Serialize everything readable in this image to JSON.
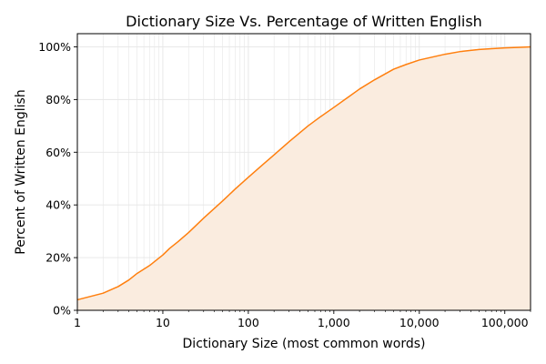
{
  "chart_data": {
    "type": "area",
    "title": "Dictionary Size Vs. Percentage of Written English",
    "xlabel": "Dictionary Size (most common words)",
    "ylabel": "Percent of Written English",
    "x_scale": "log",
    "xlim": [
      1,
      200000
    ],
    "ylim": [
      0,
      105
    ],
    "grid": true,
    "legend": "none",
    "x_ticks": [
      {
        "value": 1,
        "label": "1"
      },
      {
        "value": 10,
        "label": "10"
      },
      {
        "value": 100,
        "label": "100"
      },
      {
        "value": 1000,
        "label": "1,000"
      },
      {
        "value": 10000,
        "label": "10,000"
      },
      {
        "value": 100000,
        "label": "100,000"
      }
    ],
    "y_ticks": [
      {
        "value": 0,
        "label": "0%"
      },
      {
        "value": 20,
        "label": "20%"
      },
      {
        "value": 40,
        "label": "40%"
      },
      {
        "value": 60,
        "label": "60%"
      },
      {
        "value": 80,
        "label": "80%"
      },
      {
        "value": 100,
        "label": "100%"
      }
    ],
    "colors": {
      "line": "#ff7f0e",
      "fill": "#faecdf",
      "grid": "#e6e6e6",
      "axis": "#000000"
    },
    "series": [
      {
        "x": [
          1,
          2,
          3,
          4,
          5,
          7,
          8,
          10,
          12,
          15,
          20,
          30,
          50,
          70,
          100,
          150,
          200,
          300,
          500,
          700,
          1000,
          2000,
          3000,
          5000,
          7000,
          10000,
          20000,
          30000,
          50000,
          70000,
          100000,
          150000,
          200000
        ],
        "y": [
          4,
          6.5,
          9,
          11.5,
          14,
          17,
          18.5,
          21,
          23.5,
          26,
          29.5,
          35,
          41.5,
          46,
          50.5,
          55.5,
          59,
          64,
          70,
          73.5,
          77,
          84,
          87.5,
          91.5,
          93.3,
          95,
          97.2,
          98.2,
          99,
          99.3,
          99.6,
          99.8,
          100
        ]
      }
    ]
  }
}
